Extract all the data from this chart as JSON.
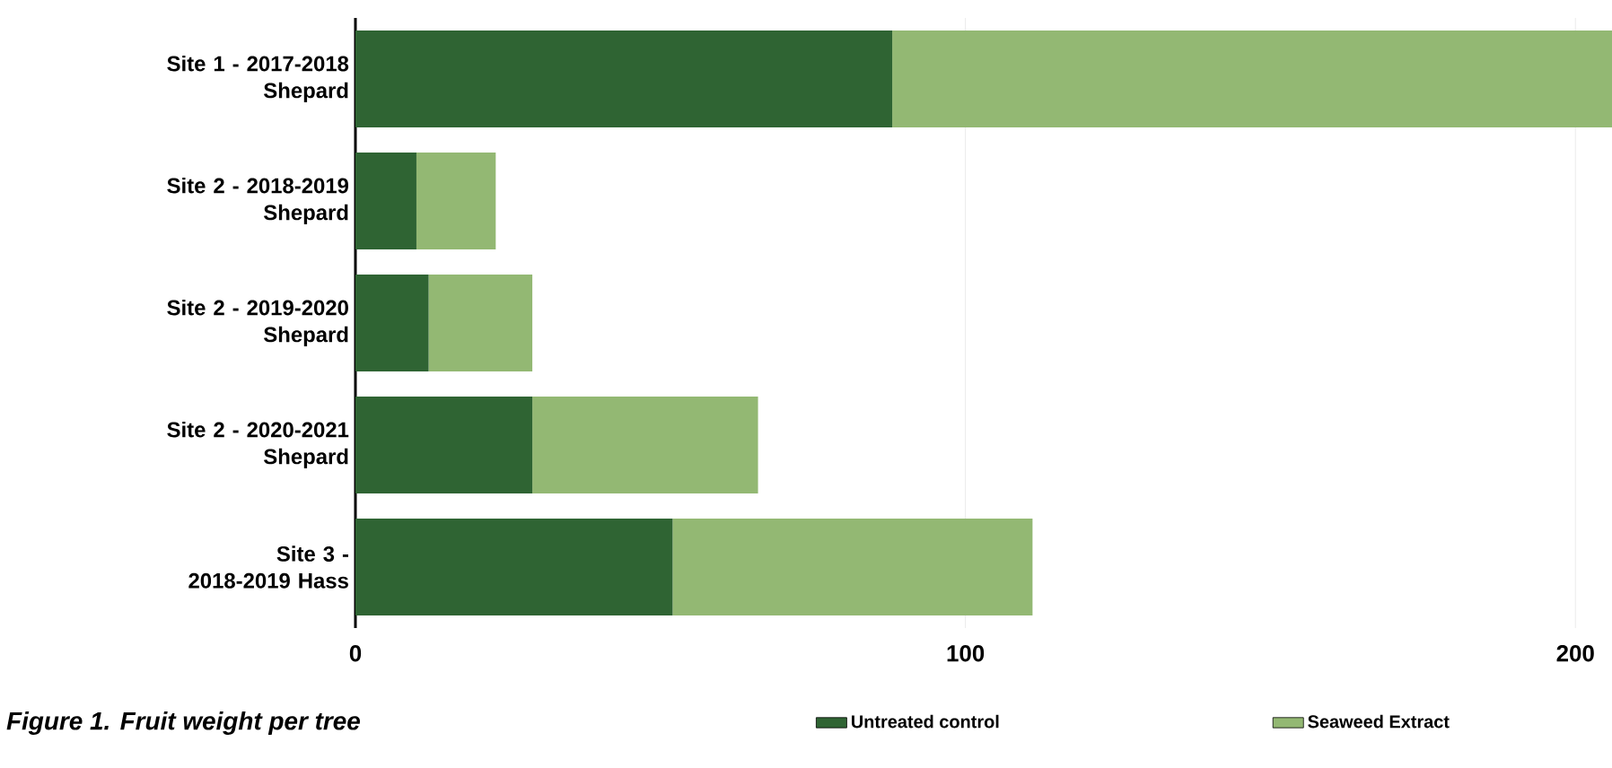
{
  "chart_data": {
    "type": "bar",
    "orientation": "horizontal",
    "stacked": true,
    "title": "Figure 1. Fruit weight per tree",
    "categories": [
      "Site 1 - 2017-2018 Shepard",
      "Site 2 - 2018-2019 Shepard",
      "Site 2 - 2019-2020 Shepard",
      "Site 2 - 2020-2021 Shepard",
      "Site 3 - 2018-2019 Hass"
    ],
    "series": [
      {
        "name": "Untreated control",
        "color": "#2f6433",
        "values": [
          88,
          10,
          12,
          29,
          52
        ]
      },
      {
        "name": "Seaweed Extract",
        "color": "#93b873",
        "values": [
          118,
          13,
          17,
          37,
          59
        ]
      }
    ],
    "xlim": [
      0,
      206
    ],
    "xticks": [
      0,
      100,
      200
    ],
    "grid": "x",
    "legend": "bottom"
  }
}
